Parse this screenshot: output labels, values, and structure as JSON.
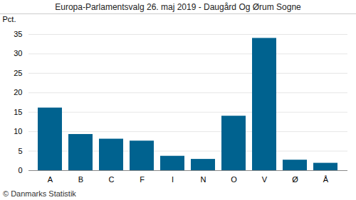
{
  "chart_data": {
    "type": "bar",
    "title": "Europa-Parlamentsvalg 26. maj 2019 - Daugård Og Ørum Sogne",
    "y_label": "Pct.",
    "caption": "© Danmarks Statistik",
    "categories": [
      "A",
      "B",
      "C",
      "F",
      "I",
      "N",
      "O",
      "V",
      "Ø",
      "Å"
    ],
    "values": [
      16.1,
      9.3,
      8.1,
      7.6,
      3.7,
      2.9,
      14.0,
      34.0,
      2.7,
      1.9
    ],
    "color": "#00628f",
    "ylim": [
      0,
      35
    ],
    "yticks": [
      0,
      5,
      10,
      15,
      20,
      25,
      30,
      35
    ],
    "grid": true
  }
}
